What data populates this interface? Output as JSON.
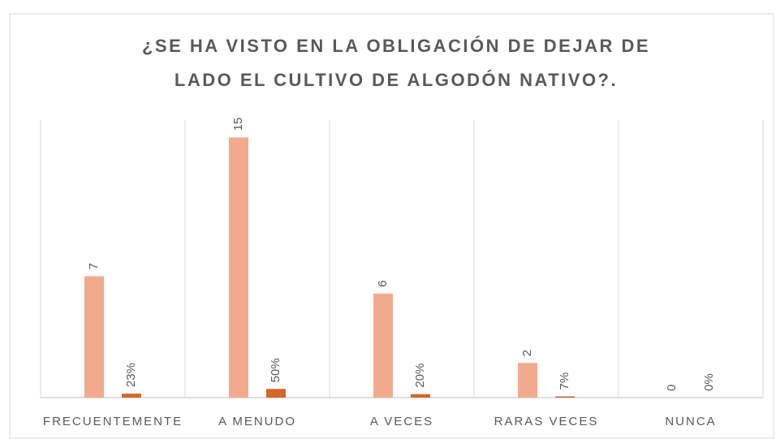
{
  "chart_data": {
    "type": "bar",
    "title": [
      "¿SE HA VISTO EN LA OBLIGACIÓN DE DEJAR DE",
      "LADO EL CULTIVO DE ALGODÓN NATIVO?."
    ],
    "categories": [
      "FRECUENTEMENTE",
      "A MENUDO",
      "A VECES",
      "RARAS VECES",
      "NUNCA"
    ],
    "series": [
      {
        "color": "#f2aa8c",
        "values": [
          7,
          15,
          6,
          2,
          0
        ]
      },
      {
        "color": "#d0692a",
        "values": [
          0.23,
          0.5,
          0.2,
          0.07,
          0
        ],
        "value_labels": [
          "23%",
          "50%",
          "20%",
          "7%",
          "0%"
        ]
      }
    ],
    "ylim": [
      0,
      16
    ]
  }
}
